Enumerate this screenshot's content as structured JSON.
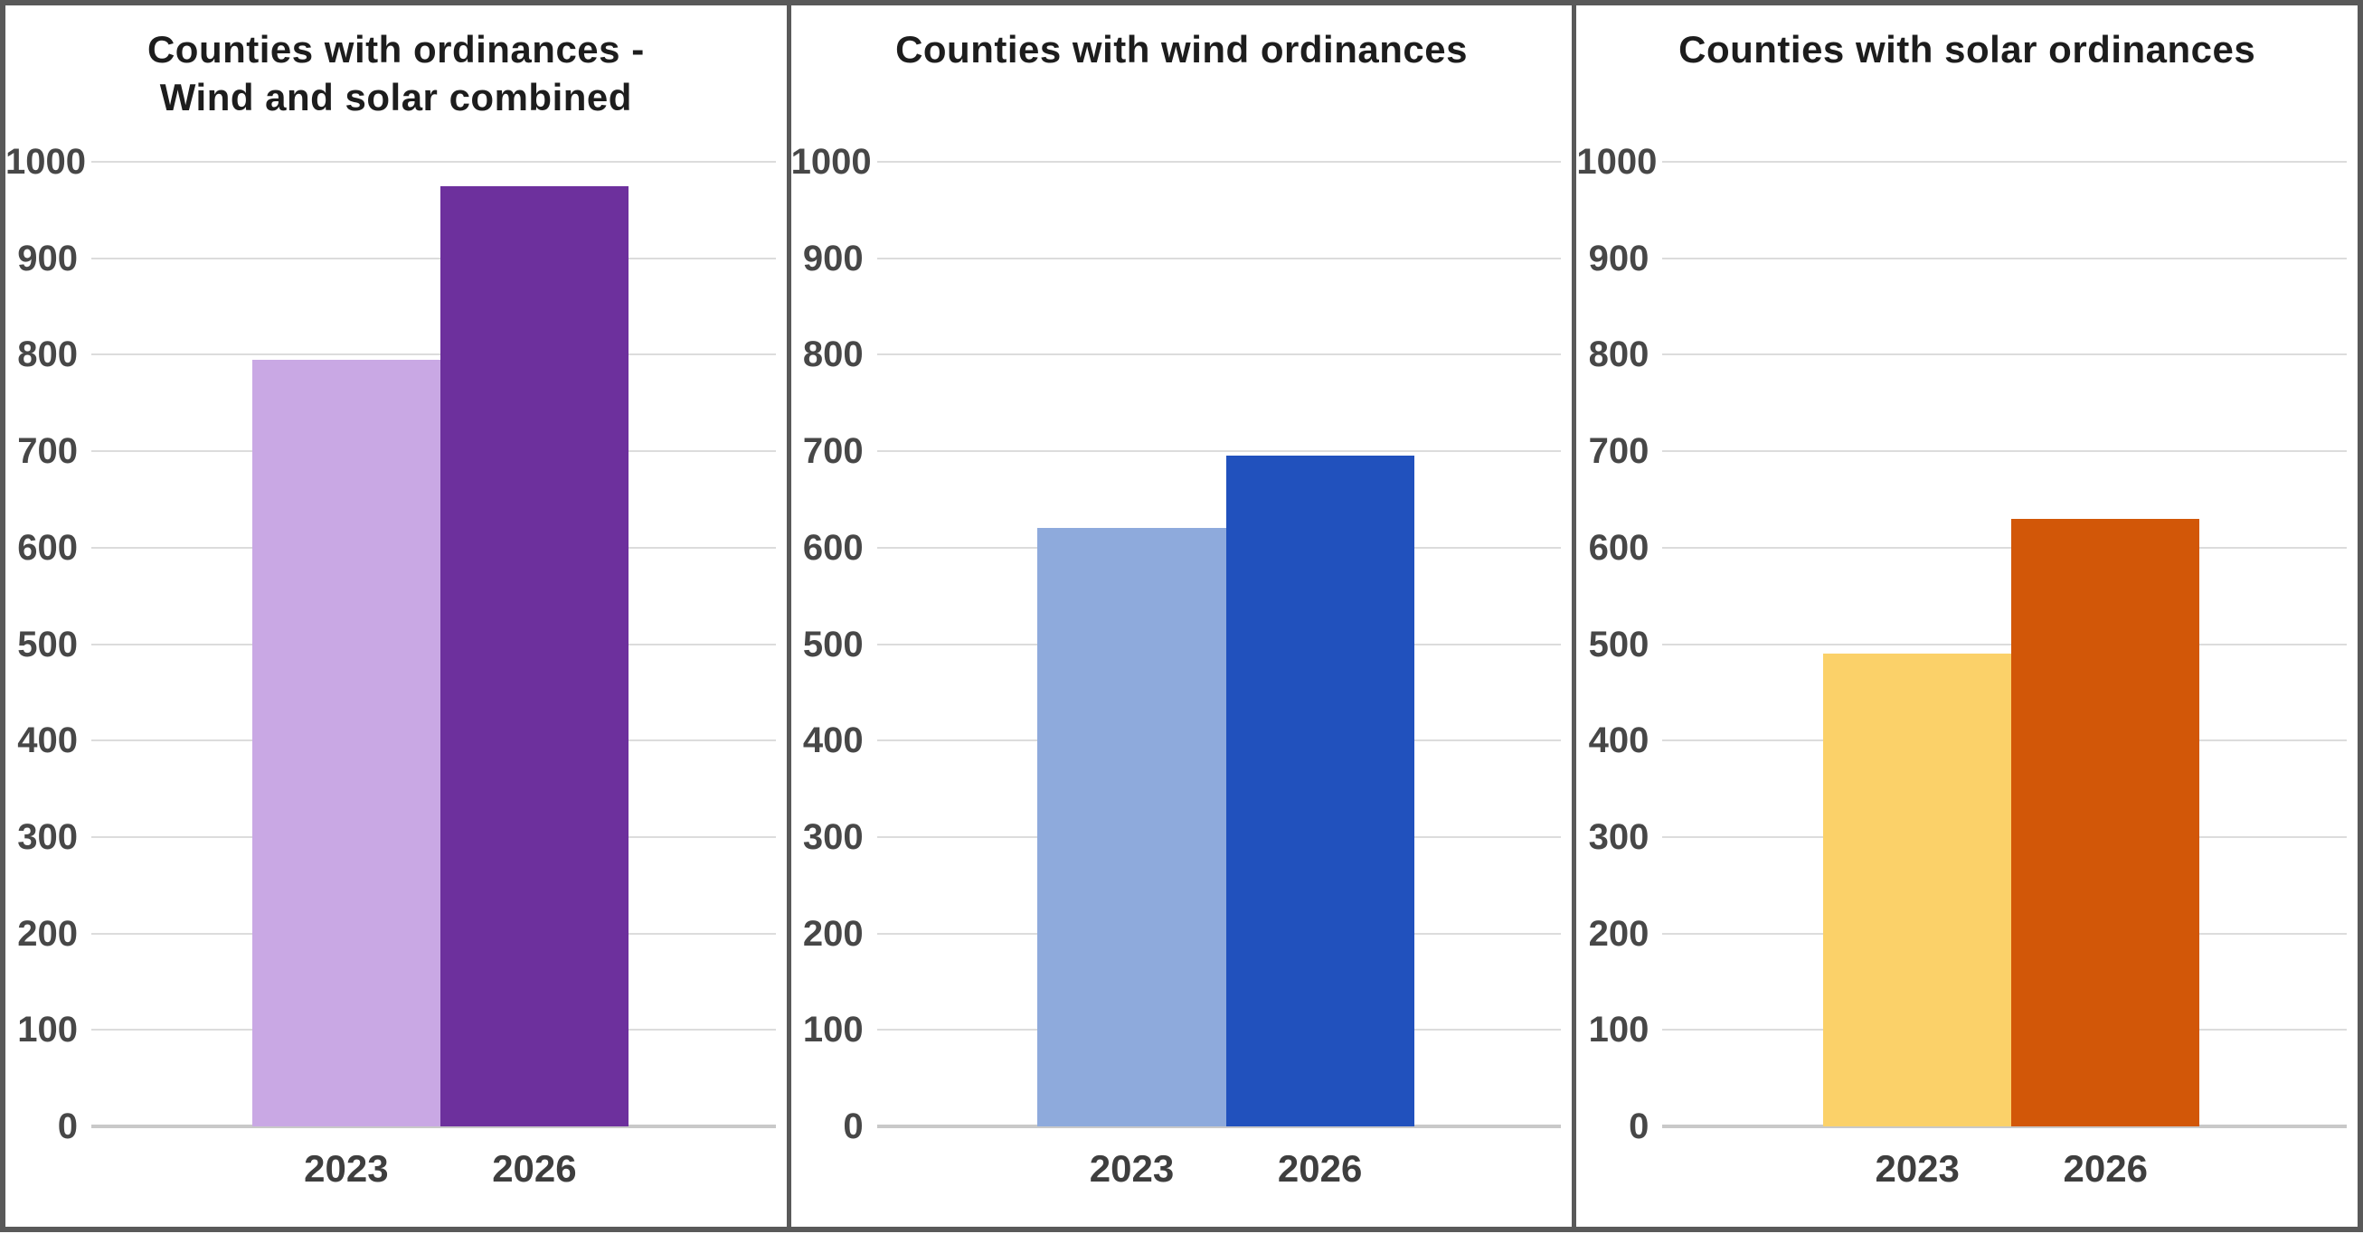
{
  "frame": {
    "border_color": "#595959",
    "background": "#ffffff"
  },
  "colors": {
    "gridline": "#dcdcdc",
    "baseline": "#c9c9c9",
    "title_text": "#1d1d1d",
    "tick_text": "#474747",
    "category_text": "#3e3e3e"
  },
  "chart_data": [
    {
      "type": "bar",
      "title_lines": [
        "Counties with ordinances -",
        "Wind and solar combined"
      ],
      "categories": [
        "2023",
        "2026"
      ],
      "values": [
        795,
        975
      ],
      "bar_colors": [
        "#c9a8e4",
        "#6d309d"
      ],
      "ylim": [
        0,
        1000
      ],
      "yticks": [
        0,
        100,
        200,
        300,
        400,
        500,
        600,
        700,
        800,
        900,
        1000
      ],
      "grid": true,
      "legend": "none"
    },
    {
      "type": "bar",
      "title_lines": [
        "Counties with wind ordinances"
      ],
      "categories": [
        "2023",
        "2026"
      ],
      "values": [
        620,
        695
      ],
      "bar_colors": [
        "#8eaadc",
        "#2151bd"
      ],
      "ylim": [
        0,
        1000
      ],
      "yticks": [
        0,
        100,
        200,
        300,
        400,
        500,
        600,
        700,
        800,
        900,
        1000
      ],
      "grid": true,
      "legend": "none"
    },
    {
      "type": "bar",
      "title_lines": [
        "Counties with solar ordinances"
      ],
      "categories": [
        "2023",
        "2026"
      ],
      "values": [
        490,
        630
      ],
      "bar_colors": [
        "#fbd169",
        "#d25708"
      ],
      "ylim": [
        0,
        1000
      ],
      "yticks": [
        0,
        100,
        200,
        300,
        400,
        500,
        600,
        700,
        800,
        900,
        1000
      ],
      "grid": true,
      "legend": "none"
    }
  ]
}
